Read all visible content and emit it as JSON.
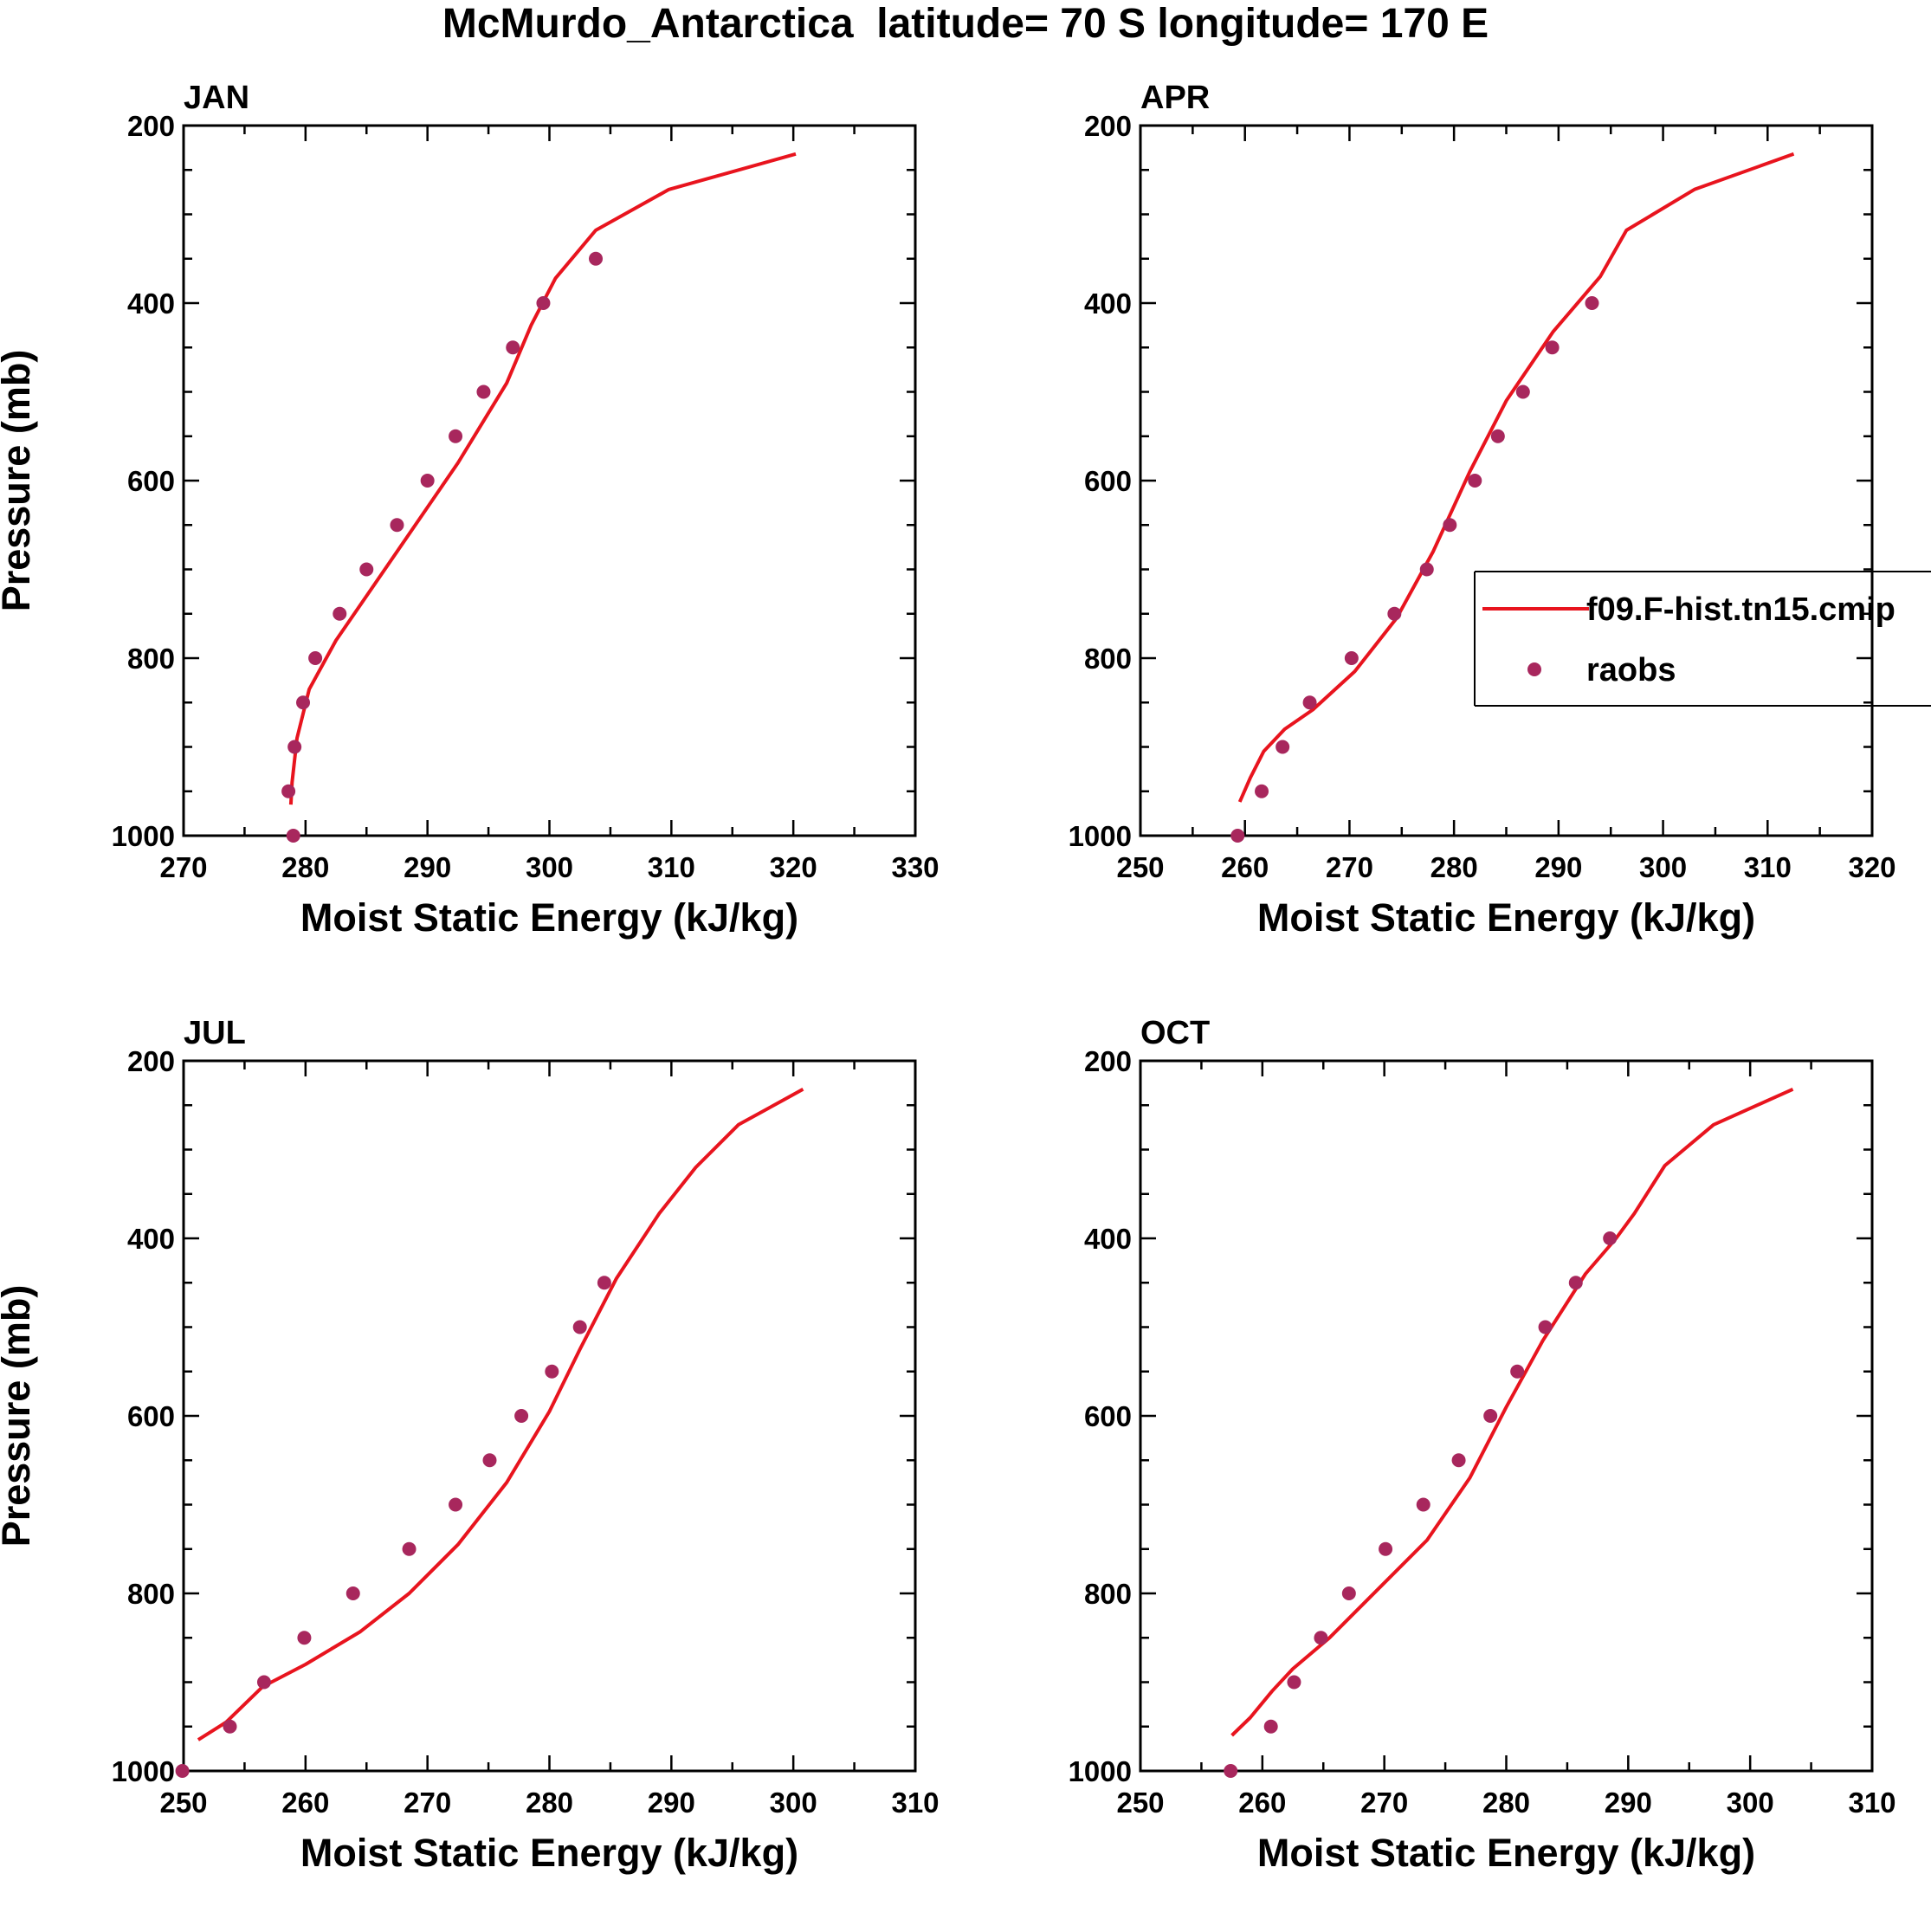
{
  "figure": {
    "title": "McMurdo_Antarctica  latitude= 70 S longitude= 170 E"
  },
  "legend": {
    "model_label": "f09.F-hist.tn15.cmip",
    "obs_label": "raobs",
    "model_color": "#e8141e",
    "obs_color": "#a8275d"
  },
  "chart_data": [
    {
      "type": "scatter",
      "panel_label": "JAN",
      "xlabel": "Moist Static Energy (kJ/kg)",
      "ylabel": "Pressure (mb)",
      "xlim": [
        270,
        330
      ],
      "ylim": [
        1000,
        200
      ],
      "xticks": [
        270,
        280,
        290,
        300,
        310,
        320,
        330
      ],
      "yticks": [
        200,
        400,
        600,
        800,
        1000
      ],
      "model": {
        "name": "f09.F-hist.tn15.cmip",
        "x": [
          278.8,
          278.9,
          279.3,
          280.3,
          282.5,
          287.5,
          292.5,
          296.5,
          298.5,
          300.5,
          303.8,
          309.8,
          320.2
        ],
        "y": [
          965,
          940,
          890,
          835,
          780,
          680,
          580,
          490,
          425,
          372,
          318,
          272,
          232
        ]
      },
      "obs": {
        "name": "raobs",
        "x": [
          279.0,
          278.6,
          279.1,
          279.8,
          280.8,
          282.8,
          285.0,
          287.5,
          290.0,
          292.3,
          294.6,
          297.0,
          299.5,
          303.8
        ],
        "y": [
          1000,
          950,
          900,
          850,
          800,
          750,
          700,
          650,
          600,
          550,
          500,
          450,
          400,
          350
        ]
      }
    },
    {
      "type": "scatter",
      "panel_label": "APR",
      "xlabel": "Moist Static Energy (kJ/kg)",
      "ylabel": "",
      "xlim": [
        250,
        320
      ],
      "ylim": [
        1000,
        200
      ],
      "xticks": [
        250,
        260,
        270,
        280,
        290,
        300,
        310,
        320
      ],
      "yticks": [
        200,
        400,
        600,
        800,
        1000
      ],
      "show_legend": true,
      "legend_position": "right",
      "model": {
        "name": "f09.F-hist.tn15.cmip",
        "x": [
          259.5,
          260.5,
          261.8,
          263.8,
          266.5,
          270.5,
          274.5,
          278.0,
          281.5,
          285.0,
          289.5,
          294.0,
          296.5,
          303.0,
          312.5
        ],
        "y": [
          962,
          935,
          905,
          880,
          858,
          815,
          755,
          680,
          590,
          510,
          432,
          370,
          318,
          272,
          232
        ]
      },
      "obs": {
        "name": "raobs",
        "x": [
          259.3,
          261.6,
          263.6,
          266.2,
          270.2,
          274.3,
          277.4,
          279.6,
          282.0,
          284.2,
          286.6,
          289.4,
          293.2
        ],
        "y": [
          1000,
          950,
          900,
          850,
          800,
          750,
          700,
          650,
          600,
          550,
          500,
          450,
          400
        ]
      }
    },
    {
      "type": "scatter",
      "panel_label": "JUL",
      "xlabel": "Moist Static Energy (kJ/kg)",
      "ylabel": "Pressure (mb)",
      "xlim": [
        250,
        310
      ],
      "ylim": [
        1000,
        200
      ],
      "xticks": [
        250,
        260,
        270,
        280,
        290,
        300,
        310
      ],
      "yticks": [
        200,
        400,
        600,
        800,
        1000
      ],
      "model": {
        "name": "f09.F-hist.tn15.cmip",
        "x": [
          251.2,
          253.5,
          256.5,
          260.0,
          264.5,
          268.5,
          272.5,
          276.5,
          280.0,
          282.5,
          285.5,
          289.0,
          292.0,
          295.5,
          300.8
        ],
        "y": [
          965,
          945,
          905,
          880,
          843,
          800,
          745,
          675,
          595,
          525,
          445,
          372,
          320,
          272,
          232
        ]
      },
      "obs": {
        "name": "raobs",
        "x": [
          249.9,
          253.8,
          256.6,
          259.9,
          263.9,
          268.5,
          272.3,
          275.1,
          277.7,
          280.2,
          282.5,
          284.5
        ],
        "y": [
          1000,
          950,
          900,
          850,
          800,
          750,
          700,
          650,
          600,
          550,
          500,
          450
        ]
      }
    },
    {
      "type": "scatter",
      "panel_label": "OCT",
      "xlabel": "Moist Static Energy (kJ/kg)",
      "ylabel": "",
      "xlim": [
        250,
        310
      ],
      "ylim": [
        1000,
        200
      ],
      "xticks": [
        250,
        260,
        270,
        280,
        290,
        300,
        310
      ],
      "yticks": [
        200,
        400,
        600,
        800,
        1000
      ],
      "model": {
        "name": "f09.F-hist.tn15.cmip",
        "x": [
          257.5,
          259.0,
          260.8,
          262.5,
          265.5,
          269.5,
          273.5,
          277.0,
          280.0,
          283.0,
          286.5,
          289.0,
          290.5,
          293.0,
          297.0,
          303.5
        ],
        "y": [
          960,
          940,
          910,
          885,
          850,
          795,
          740,
          670,
          590,
          515,
          440,
          400,
          372,
          318,
          272,
          232
        ]
      },
      "obs": {
        "name": "raobs",
        "x": [
          257.4,
          260.7,
          262.6,
          264.8,
          267.1,
          270.1,
          273.2,
          276.1,
          278.7,
          280.9,
          283.2,
          285.7,
          288.5
        ],
        "y": [
          1000,
          950,
          900,
          850,
          800,
          750,
          700,
          650,
          600,
          550,
          500,
          450,
          400
        ]
      }
    }
  ]
}
